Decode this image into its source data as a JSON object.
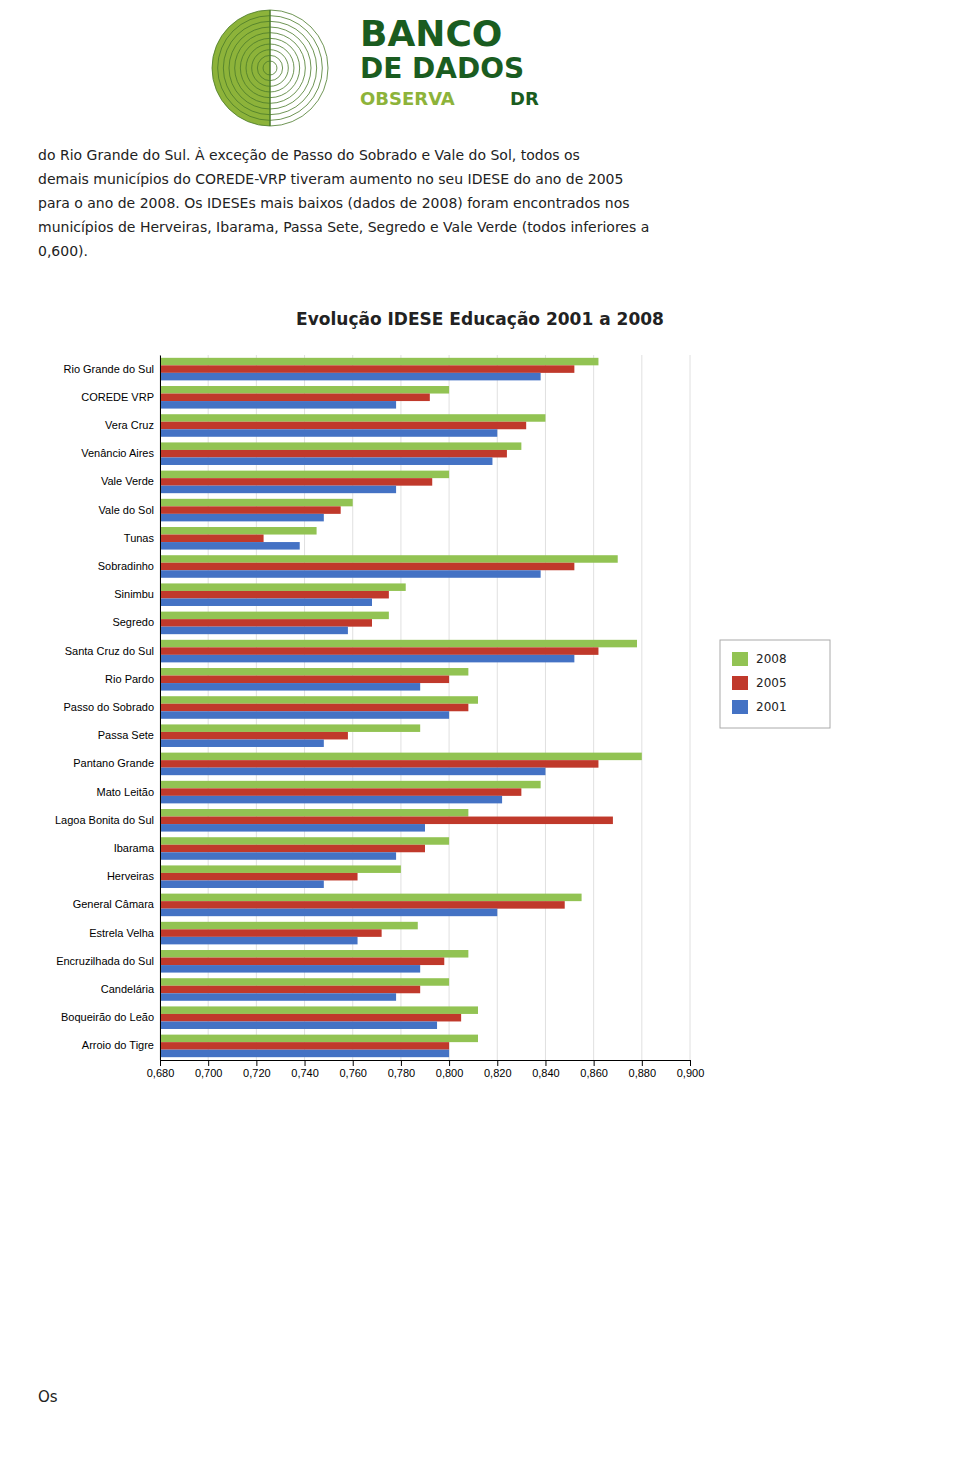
{
  "chart_data": {
    "type": "bar",
    "orientation": "horizontal",
    "title": "Evolução IDESE Educação 2001 a 2008",
    "annotations": [
      "BANCO",
      "DE DADOS",
      "OBSERVA",
      "DR",
      "do Rio Grande do Sul. À exceção de Passo do Sobrado e Vale do Sol, todos os",
      "demais municípios do COREDE-VRP tiveram aumento no seu IDESE do ano de 2005",
      "para o ano de 2008. Os IDESEs mais baixos (dados de 2008) foram encontrados nos",
      "municípios de Herveiras, Ibarama, Passa Sete, Segredo e Vale Verde (todos inferiores a",
      "0,600).",
      "Os"
    ],
    "categories": [
      "Rio Grande do Sul",
      "COREDE VRP",
      "Vera Cruz",
      "Venâncio Aires",
      "Vale Verde",
      "Vale do Sol",
      "Tunas",
      "Sobradinho",
      "Sinimbu",
      "Segredo",
      "Santa Cruz do Sul",
      "Rio Pardo",
      "Passo do Sobrado",
      "Passa Sete",
      "Pantano Grande",
      "Mato Leitão",
      "Lagoa Bonita do Sul",
      "Ibarama",
      "Herveiras",
      "General Câmara",
      "Estrela Velha",
      "Encruzilhada do Sul",
      "Candelária",
      "Boqueirão do Leão",
      "Arroio do Tigre"
    ],
    "series": [
      {
        "name": "2008",
        "color": "#92C353",
        "values": [
          0.862,
          0.8,
          0.84,
          0.83,
          0.8,
          0.76,
          0.745,
          0.87,
          0.782,
          0.775,
          0.878,
          0.808,
          0.812,
          0.788,
          0.88,
          0.838,
          0.808,
          0.8,
          0.78,
          0.855,
          0.787,
          0.808,
          0.8,
          0.812,
          0.812
        ]
      },
      {
        "name": "2005",
        "color": "#C0392B",
        "values": [
          0.852,
          0.792,
          0.832,
          0.824,
          0.793,
          0.755,
          0.723,
          0.852,
          0.775,
          0.768,
          0.862,
          0.8,
          0.808,
          0.758,
          0.862,
          0.83,
          0.868,
          0.79,
          0.762,
          0.848,
          0.772,
          0.798,
          0.788,
          0.805,
          0.8
        ]
      },
      {
        "name": "2001",
        "color": "#4472C4",
        "values": [
          0.838,
          0.778,
          0.82,
          0.818,
          0.778,
          0.748,
          0.738,
          0.838,
          0.768,
          0.758,
          0.852,
          0.788,
          0.8,
          0.748,
          0.84,
          0.822,
          0.79,
          0.778,
          0.748,
          0.82,
          0.762,
          0.788,
          0.778,
          0.795,
          0.8
        ]
      }
    ],
    "xlim": [
      0.68,
      0.9
    ],
    "xticks": [
      {
        "value": 0.68,
        "label": "0,680"
      },
      {
        "value": 0.7,
        "label": "0,700"
      },
      {
        "value": 0.72,
        "label": "0,720"
      },
      {
        "value": 0.74,
        "label": "0,740"
      },
      {
        "value": 0.76,
        "label": "0,760"
      },
      {
        "value": 0.78,
        "label": "0,780"
      },
      {
        "value": 0.8,
        "label": "0,800"
      },
      {
        "value": 0.82,
        "label": "0,820"
      },
      {
        "value": 0.84,
        "label": "0,840"
      },
      {
        "value": 0.86,
        "label": "0,860"
      },
      {
        "value": 0.88,
        "label": "0,880"
      },
      {
        "value": 0.9,
        "label": "0,900"
      }
    ],
    "grid": true,
    "legend": "right"
  }
}
